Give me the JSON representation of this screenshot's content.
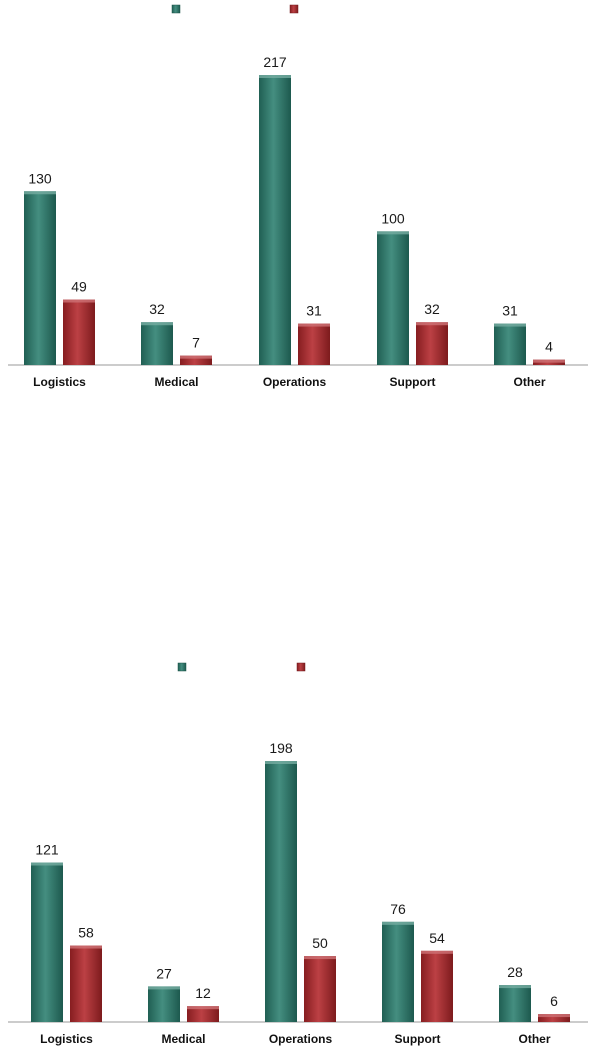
{
  "chart_data": [
    {
      "type": "bar",
      "categories": [
        "Logistics",
        "Medical",
        "Operations",
        "Support",
        "Other"
      ],
      "series": [
        {
          "values": [
            130,
            32,
            217,
            100,
            31
          ],
          "color": "#2a7f6f"
        },
        {
          "values": [
            49,
            7,
            31,
            32,
            4
          ],
          "color": "#b3262a"
        }
      ],
      "legend": "top-center",
      "grid": false
    },
    {
      "type": "bar",
      "categories": [
        "Logistics",
        "Medical",
        "Operations",
        "Support",
        "Other"
      ],
      "series": [
        {
          "values": [
            121,
            27,
            198,
            76,
            28
          ],
          "color": "#2a7f6f"
        },
        {
          "values": [
            58,
            12,
            50,
            54,
            6
          ],
          "color": "#b3262a"
        }
      ],
      "legend": "top-center",
      "grid": false
    }
  ]
}
